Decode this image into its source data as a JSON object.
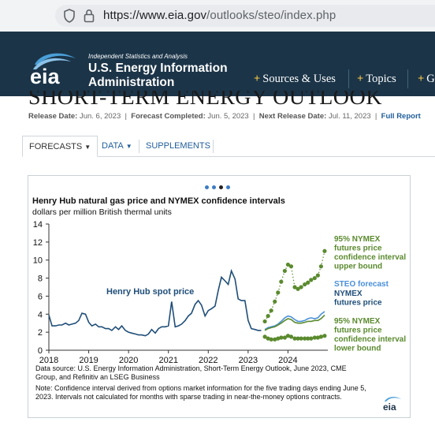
{
  "browser": {
    "url_host": "https://www.eia.gov",
    "url_path": "/outlooks/steo/index.php"
  },
  "header": {
    "logo_text": "eia",
    "tagline": "Independent Statistics and Analysis",
    "agency_line1": "U.S. Energy Information",
    "agency_line2": "Administration",
    "nav": [
      "Sources & Uses",
      "Topics",
      "G"
    ]
  },
  "page": {
    "title": "SHORT-TERM ENERGY OUTLOOK",
    "release_label": "Release Date:",
    "release_date": "Jun. 6, 2023",
    "forecast_label": "Forecast Completed:",
    "forecast_date": "Jun. 5, 2023",
    "next_label": "Next Release Date:",
    "next_date": "Jul. 11, 2023",
    "full_report": "Full Report"
  },
  "tabs": [
    {
      "label": "FORECASTS",
      "active": true,
      "dropdown": true
    },
    {
      "label": "DATA",
      "active": false,
      "dropdown": true
    },
    {
      "label": "SUPPLEMENTS",
      "active": false,
      "dropdown": false
    }
  ],
  "carousel": {
    "count": 4,
    "active_index": 2
  },
  "chart": {
    "title": "Henry Hub natural gas price and NYMEX confidence intervals",
    "subtitle": "dollars per million British thermal units",
    "source": "Data source: U.S. Energy Information Administration, Short-Term Energy Outlook, June 2023, CME Group, and Refinitiv an LSEG Business",
    "note": "Note: Confidence interval derived from options market information for the five trading days ending June 5, 2023. Intervals not calculated for months with sparse trading in near-the-money options contracts.",
    "logo_text": "eia"
  },
  "chart_data": {
    "type": "line",
    "title": "Henry Hub natural gas price and NYMEX confidence intervals",
    "ylabel": "dollars per million British thermal units",
    "ylim": [
      0,
      14
    ],
    "yticks": [
      "0",
      "2",
      "4",
      "6",
      "8",
      "10",
      "12",
      "14"
    ],
    "xticks": [
      "2018",
      "2019",
      "2020",
      "2021",
      "2022",
      "2023",
      "2024"
    ],
    "xlim": [
      2018,
      2025
    ],
    "grid": false,
    "colors": {
      "history": "#1f4e79",
      "forecast": "#4a90d9",
      "futures": "#5a8a2e",
      "bounds": "#5a8a2e"
    },
    "series": [
      {
        "name": "Henry Hub spot price",
        "x": [
          2018.0,
          2018.08,
          2018.17,
          2018.25,
          2018.33,
          2018.42,
          2018.5,
          2018.58,
          2018.67,
          2018.75,
          2018.83,
          2018.92,
          2019.0,
          2019.08,
          2019.17,
          2019.25,
          2019.33,
          2019.42,
          2019.5,
          2019.58,
          2019.67,
          2019.75,
          2019.83,
          2019.92,
          2020.0,
          2020.08,
          2020.17,
          2020.25,
          2020.33,
          2020.42,
          2020.5,
          2020.58,
          2020.67,
          2020.75,
          2020.83,
          2020.92,
          2021.0,
          2021.08,
          2021.17,
          2021.25,
          2021.33,
          2021.42,
          2021.5,
          2021.58,
          2021.67,
          2021.75,
          2021.83,
          2021.92,
          2022.0,
          2022.08,
          2022.17,
          2022.25,
          2022.33,
          2022.42,
          2022.5,
          2022.58,
          2022.67,
          2022.75,
          2022.83,
          2022.92,
          2023.0,
          2023.08,
          2023.17,
          2023.25,
          2023.33
        ],
        "values": [
          3.9,
          2.7,
          2.7,
          2.8,
          2.8,
          3.0,
          2.8,
          2.9,
          3.0,
          3.3,
          4.1,
          4.0,
          3.1,
          2.7,
          2.9,
          2.6,
          2.6,
          2.4,
          2.4,
          2.2,
          2.6,
          2.3,
          2.7,
          2.2,
          2.0,
          1.9,
          1.8,
          1.7,
          1.7,
          1.6,
          1.8,
          2.3,
          1.9,
          2.4,
          2.6,
          2.6,
          2.7,
          5.4,
          2.6,
          2.7,
          2.9,
          3.3,
          3.8,
          4.1,
          5.1,
          5.5,
          5.0,
          3.8,
          4.4,
          4.6,
          4.9,
          6.6,
          8.1,
          7.7,
          7.3,
          8.8,
          7.9,
          5.7,
          5.5,
          5.5,
          3.3,
          2.4,
          2.3,
          2.2,
          2.2
        ]
      },
      {
        "name": "STEO forecast",
        "x": [
          2023.42,
          2023.5,
          2023.58,
          2023.67,
          2023.75,
          2023.83,
          2023.92,
          2024.0,
          2024.08,
          2024.17,
          2024.25,
          2024.33,
          2024.42,
          2024.5,
          2024.58,
          2024.67,
          2024.75,
          2024.83,
          2024.92
        ],
        "values": [
          2.3,
          2.5,
          2.6,
          2.7,
          2.9,
          3.2,
          3.6,
          3.8,
          3.7,
          3.4,
          3.2,
          3.2,
          3.3,
          3.5,
          3.6,
          3.5,
          3.6,
          4.0,
          4.3
        ]
      },
      {
        "name": "NYMEX futures price",
        "x": [
          2023.42,
          2023.5,
          2023.58,
          2023.67,
          2023.75,
          2023.83,
          2023.92,
          2024.0,
          2024.08,
          2024.17,
          2024.25,
          2024.33,
          2024.42,
          2024.5,
          2024.58,
          2024.67,
          2024.75,
          2024.83,
          2024.92
        ],
        "values": [
          2.2,
          2.4,
          2.5,
          2.6,
          2.8,
          3.0,
          3.3,
          3.5,
          3.4,
          3.1,
          3.0,
          3.0,
          3.1,
          3.2,
          3.2,
          3.3,
          3.3,
          3.5,
          3.9
        ]
      },
      {
        "name": "95% NYMEX futures price confidence interval upper bound",
        "x": [
          2023.42,
          2023.5,
          2023.58,
          2023.67,
          2023.75,
          2023.83,
          2023.92,
          2024.0,
          2024.08,
          2024.17,
          2024.25,
          2024.33,
          2024.42,
          2024.5,
          2024.58,
          2024.67,
          2024.75,
          2024.83,
          2024.92
        ],
        "values": [
          3.2,
          3.8,
          4.4,
          5.4,
          6.4,
          7.6,
          8.8,
          9.5,
          9.3,
          7.0,
          6.8,
          7.0,
          7.3,
          7.5,
          7.8,
          8.0,
          8.3,
          9.3,
          11.0
        ]
      },
      {
        "name": "95% NYMEX futures price confidence interval lower bound",
        "x": [
          2023.42,
          2023.5,
          2023.58,
          2023.67,
          2023.75,
          2023.83,
          2023.92,
          2024.0,
          2024.08,
          2024.17,
          2024.25,
          2024.33,
          2024.42,
          2024.5,
          2024.58,
          2024.67,
          2024.75,
          2024.83,
          2024.92
        ],
        "values": [
          1.5,
          1.3,
          1.2,
          1.2,
          1.3,
          1.4,
          1.4,
          1.6,
          1.5,
          1.3,
          1.3,
          1.3,
          1.3,
          1.3,
          1.3,
          1.4,
          1.4,
          1.5,
          1.6
        ]
      }
    ],
    "annotations": [
      {
        "text": "Henry Hub spot price",
        "color": "#1f4e79"
      },
      {
        "lines": [
          "95% NYMEX",
          "futures price",
          "confidence interval",
          "upper bound"
        ],
        "color": "#5a8a2e"
      },
      {
        "lines": [
          "STEO forecast"
        ],
        "color": "#4a90d9"
      },
      {
        "lines": [
          "NYMEX",
          "futures price"
        ],
        "color": "#1f4e79"
      },
      {
        "lines": [
          "95% NYMEX",
          "futures price",
          "confidence interval",
          "lower bound"
        ],
        "color": "#5a8a2e"
      }
    ]
  }
}
